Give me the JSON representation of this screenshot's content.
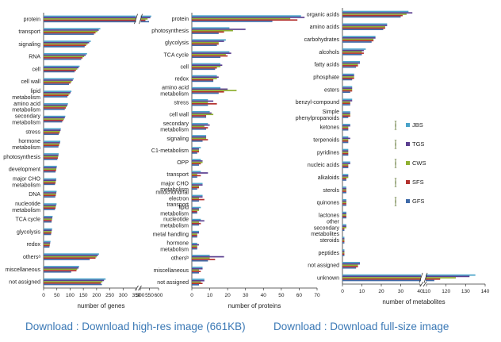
{
  "chart_data": [
    {
      "type": "bar",
      "orientation": "horizontal",
      "xlabel": "number of genes",
      "tick_labels": [
        "0",
        "50",
        "100",
        "150",
        "200",
        "250",
        "300",
        "350",
        "500",
        "550",
        "600"
      ],
      "axis_break": {
        "from": 350,
        "to": 500
      },
      "categories": [
        "protein",
        "transport",
        "signaling",
        "RNA",
        "cell",
        "cell wall",
        "lipid metabolism",
        "amino acid metabolism",
        "secondary metabolism",
        "stress",
        "hormone metabolism",
        "photosynthesis",
        "development",
        "major CHO metabolism",
        "DNA",
        "nucleotide metabolism",
        "TCA cycle",
        "glycolysis",
        "redox",
        "othersᵃ",
        "miscellaneous",
        "not assigned"
      ],
      "series": [
        {
          "name": "JBS",
          "values": [
            560,
            214,
            178,
            164,
            136,
            114,
            105,
            92,
            82,
            65,
            63,
            57,
            50,
            48,
            49,
            49,
            34,
            32,
            26,
            209,
            134,
            234
          ]
        },
        {
          "name": "TGS",
          "values": [
            555,
            208,
            172,
            159,
            132,
            110,
            102,
            90,
            80,
            64,
            62,
            56,
            49,
            47,
            48,
            47,
            33,
            31,
            25,
            205,
            132,
            228
          ]
        },
        {
          "name": "CWS",
          "values": [
            540,
            203,
            166,
            153,
            127,
            106,
            98,
            87,
            77,
            62,
            60,
            55,
            48,
            46,
            47,
            46,
            32,
            30,
            24,
            200,
            127,
            222
          ]
        },
        {
          "name": "SFS",
          "values": [
            528,
            196,
            160,
            147,
            122,
            102,
            94,
            84,
            74,
            60,
            58,
            54,
            47,
            45,
            46,
            45,
            31,
            29,
            23,
            196,
            124,
            216
          ]
        },
        {
          "name": "GFS",
          "values": [
            548,
            190,
            155,
            142,
            117,
            96,
            90,
            80,
            70,
            57,
            56,
            52,
            45,
            43,
            44,
            43,
            30,
            28,
            22,
            174,
            104,
            220
          ]
        }
      ]
    },
    {
      "type": "bar",
      "orientation": "horizontal",
      "xlabel": "number of proteins",
      "xlim": [
        0,
        70
      ],
      "tick_labels": [
        "0",
        "10",
        "20",
        "30",
        "40",
        "50",
        "60",
        "70"
      ],
      "categories": [
        "protein",
        "photosynthesis",
        "glycolysis",
        "TCA cycle",
        "cell",
        "redox",
        "amino acid metabolism",
        "stress",
        "cell wall",
        "secondary metabolism",
        "signaling",
        "C1-metabolism",
        "OPP",
        "transport",
        "major CHO metabolism",
        "mitochondrial electron transport",
        "lipid metabolism",
        "nucleotide metabolism",
        "metal handling",
        "hormone metabolism",
        "othersᵇ",
        "miscellaneous",
        "not assigned"
      ],
      "series": [
        {
          "name": "JBS",
          "values": [
            61,
            21,
            19,
            21,
            16,
            14,
            16,
            9,
            10,
            9,
            8,
            5,
            5,
            5,
            6,
            6,
            5,
            5,
            4,
            3,
            10,
            6,
            7
          ]
        },
        {
          "name": "TGS",
          "values": [
            63,
            30,
            18,
            22,
            17,
            15,
            20,
            12,
            11,
            10,
            8,
            4,
            6,
            9,
            6,
            6,
            4,
            7,
            4,
            4,
            18,
            6,
            7
          ]
        },
        {
          "name": "CWS",
          "values": [
            55,
            23,
            15,
            19,
            16,
            14,
            25,
            9,
            12,
            7,
            8,
            4,
            6,
            3,
            4,
            4,
            4,
            4,
            3,
            3,
            10,
            4,
            5
          ]
        },
        {
          "name": "SFS",
          "values": [
            59,
            18,
            15,
            20,
            14,
            12,
            18,
            14,
            8,
            9,
            9,
            4,
            5,
            5,
            4,
            7,
            3,
            5,
            3,
            3,
            13,
            5,
            6
          ]
        },
        {
          "name": "GFS",
          "values": [
            45,
            15,
            14,
            16,
            13,
            12,
            15,
            9,
            8,
            8,
            6,
            3,
            4,
            3,
            3,
            4,
            3,
            4,
            3,
            3,
            9,
            4,
            4
          ]
        }
      ]
    },
    {
      "type": "bar",
      "orientation": "horizontal",
      "xlabel": "number of metabolites",
      "tick_labels": [
        "0",
        "10",
        "20",
        "30",
        "40",
        "110",
        "120",
        "130",
        "140"
      ],
      "axis_break": {
        "from": 40,
        "to": 110
      },
      "categories": [
        "organic acids",
        "amino acids",
        "carbohydrates",
        "alcohols",
        "fatty acids",
        "phosphate",
        "esters",
        "benzyl-compound",
        "Simple phenylpropanoids",
        "ketones",
        "terpenoids",
        "pyridines",
        "nucleic acids",
        "alkaloids",
        "sterols",
        "quinones",
        "lactones",
        "other secondary metabolites",
        "steroids",
        "peptides",
        "not assigned",
        "unknown"
      ],
      "series": [
        {
          "name": "JBS",
          "values": [
            34,
            23,
            17,
            12,
            9,
            6,
            5,
            5,
            4,
            4,
            3,
            3,
            4,
            3,
            2,
            2,
            2,
            2,
            1,
            1,
            9,
            135
          ]
        },
        {
          "name": "TGS",
          "values": [
            36,
            23,
            17,
            11,
            9,
            6,
            5,
            5,
            4,
            4,
            4,
            3,
            4,
            3,
            2,
            2,
            2,
            2,
            1,
            1,
            9,
            132
          ]
        },
        {
          "name": "CWS",
          "values": [
            33,
            22,
            16,
            10,
            8,
            6,
            5,
            4,
            4,
            3,
            3,
            3,
            3,
            3,
            2,
            2,
            2,
            2,
            1,
            1,
            8,
            125
          ]
        },
        {
          "name": "SFS",
          "values": [
            31,
            22,
            16,
            11,
            8,
            6,
            5,
            4,
            4,
            3,
            3,
            3,
            3,
            2,
            2,
            2,
            2,
            1,
            1,
            1,
            8,
            117
          ]
        },
        {
          "name": "GFS",
          "values": [
            30,
            21,
            15,
            10,
            7,
            5,
            4,
            4,
            3,
            3,
            3,
            3,
            3,
            2,
            2,
            2,
            2,
            1,
            1,
            1,
            7,
            114
          ]
        }
      ]
    }
  ],
  "legend": [
    {
      "name": "JBS",
      "color": "#4aa3c9"
    },
    {
      "name": "TGS",
      "color": "#5b3f90"
    },
    {
      "name": "CWS",
      "color": "#8fb031"
    },
    {
      "name": "SFS",
      "color": "#b3312e"
    },
    {
      "name": "GFS",
      "color": "#3f6aa8"
    }
  ],
  "legend_position": "right of metabolite panel",
  "links": {
    "download_high_res": "Download : Download high-res image (661KB)",
    "download_full": "Download : Download full-size image"
  }
}
